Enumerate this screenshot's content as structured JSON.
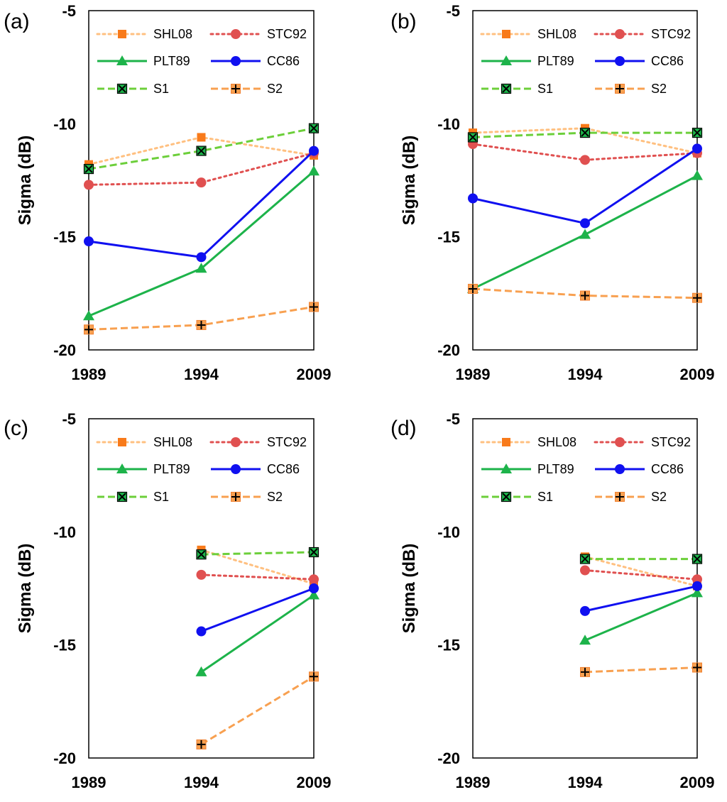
{
  "chart_data": [
    {
      "panel_label": "(a)",
      "type": "line",
      "x_categories": [
        "1989",
        "1994",
        "2009"
      ],
      "ylabel": "Sigma (dB)",
      "ylim": [
        -20,
        -5
      ],
      "yticks": [
        "-5",
        "-10",
        "-15",
        "-20"
      ],
      "legend_placement": "top, inside plot, 3 rows x 2 columns",
      "series": [
        {
          "name": "SHL08",
          "values": [
            -11.8,
            -10.6,
            -11.4
          ],
          "color": "#FFC080",
          "marker_color": "#F87A1A",
          "line_style": "dotted",
          "marker": "square"
        },
        {
          "name": "STC92",
          "values": [
            -12.7,
            -12.6,
            -11.3
          ],
          "color": "#E05050",
          "marker_color": "#E05050",
          "line_style": "dotted",
          "marker": "circle"
        },
        {
          "name": "PLT89",
          "values": [
            -18.5,
            -16.4,
            -12.1
          ],
          "color": "#1DB34A",
          "marker_color": "#1DB34A",
          "line_style": "solid",
          "marker": "triangle"
        },
        {
          "name": "CC86",
          "values": [
            -15.2,
            -15.9,
            -11.2
          ],
          "color": "#1010F0",
          "marker_color": "#1010F0",
          "line_style": "solid",
          "marker": "circle"
        },
        {
          "name": "S1",
          "values": [
            -12.0,
            -11.2,
            -10.2
          ],
          "color": "#6CCF3A",
          "marker_color": "#1DB34A",
          "line_style": "dashed",
          "marker": "square-x"
        },
        {
          "name": "S2",
          "values": [
            -19.1,
            -18.9,
            -18.1
          ],
          "color": "#F8A050",
          "marker_color": "#F8A050",
          "line_style": "dashed",
          "marker": "square-plus"
        }
      ]
    },
    {
      "panel_label": "(b)",
      "type": "line",
      "x_categories": [
        "1989",
        "1994",
        "2009"
      ],
      "ylabel": "Sigma (dB)",
      "ylim": [
        -20,
        -5
      ],
      "yticks": [
        "-5",
        "-10",
        "-15",
        "-20"
      ],
      "legend_placement": "top, inside plot, 3 rows x 2 columns",
      "series": [
        {
          "name": "SHL08",
          "values": [
            -10.4,
            -10.2,
            -11.3
          ],
          "color": "#FFC080",
          "marker_color": "#F87A1A",
          "line_style": "dotted",
          "marker": "square"
        },
        {
          "name": "STC92",
          "values": [
            -10.9,
            -11.6,
            -11.3
          ],
          "color": "#E05050",
          "marker_color": "#E05050",
          "line_style": "dotted",
          "marker": "circle"
        },
        {
          "name": "PLT89",
          "values": [
            -17.3,
            -14.9,
            -12.3
          ],
          "color": "#1DB34A",
          "marker_color": "#1DB34A",
          "line_style": "solid",
          "marker": "triangle"
        },
        {
          "name": "CC86",
          "values": [
            -13.3,
            -14.4,
            -11.1
          ],
          "color": "#1010F0",
          "marker_color": "#1010F0",
          "line_style": "solid",
          "marker": "circle"
        },
        {
          "name": "S1",
          "values": [
            -10.6,
            -10.4,
            -10.4
          ],
          "color": "#6CCF3A",
          "marker_color": "#1DB34A",
          "line_style": "dashed",
          "marker": "square-x"
        },
        {
          "name": "S2",
          "values": [
            -17.3,
            -17.6,
            -17.7
          ],
          "color": "#F8A050",
          "marker_color": "#F8A050",
          "line_style": "dashed",
          "marker": "square-plus"
        }
      ]
    },
    {
      "panel_label": "(c)",
      "type": "line",
      "x_categories": [
        "1989",
        "1994",
        "2009"
      ],
      "ylabel": "Sigma (dB)",
      "ylim": [
        -20,
        -5
      ],
      "yticks": [
        "-5",
        "-10",
        "-15",
        "-20"
      ],
      "legend_placement": "top, inside plot, 3 rows x 2 columns",
      "series": [
        {
          "name": "SHL08",
          "values": [
            null,
            -10.8,
            -12.3
          ],
          "color": "#FFC080",
          "marker_color": "#F87A1A",
          "line_style": "dotted",
          "marker": "square"
        },
        {
          "name": "STC92",
          "values": [
            null,
            -11.9,
            -12.1
          ],
          "color": "#E05050",
          "marker_color": "#E05050",
          "line_style": "dotted",
          "marker": "circle"
        },
        {
          "name": "PLT89",
          "values": [
            null,
            -16.2,
            -12.8
          ],
          "color": "#1DB34A",
          "marker_color": "#1DB34A",
          "line_style": "solid",
          "marker": "triangle"
        },
        {
          "name": "CC86",
          "values": [
            null,
            -14.4,
            -12.5
          ],
          "color": "#1010F0",
          "marker_color": "#1010F0",
          "line_style": "solid",
          "marker": "circle"
        },
        {
          "name": "S1",
          "values": [
            null,
            -11.0,
            -10.9
          ],
          "color": "#6CCF3A",
          "marker_color": "#1DB34A",
          "line_style": "dashed",
          "marker": "square-x"
        },
        {
          "name": "S2",
          "values": [
            null,
            -19.4,
            -16.4
          ],
          "color": "#F8A050",
          "marker_color": "#F8A050",
          "line_style": "dashed",
          "marker": "square-plus"
        }
      ]
    },
    {
      "panel_label": "(d)",
      "type": "line",
      "x_categories": [
        "1989",
        "1994",
        "2009"
      ],
      "ylabel": "Sigma (dB)",
      "ylim": [
        -20,
        -5
      ],
      "yticks": [
        "-5",
        "-10",
        "-15",
        "-20"
      ],
      "legend_placement": "top, inside plot, 3 rows x 2 columns",
      "series": [
        {
          "name": "SHL08",
          "values": [
            null,
            -11.1,
            -12.4
          ],
          "color": "#FFC080",
          "marker_color": "#F87A1A",
          "line_style": "dotted",
          "marker": "square"
        },
        {
          "name": "STC92",
          "values": [
            null,
            -11.7,
            -12.1
          ],
          "color": "#E05050",
          "marker_color": "#E05050",
          "line_style": "dotted",
          "marker": "circle"
        },
        {
          "name": "PLT89",
          "values": [
            null,
            -14.8,
            -12.7
          ],
          "color": "#1DB34A",
          "marker_color": "#1DB34A",
          "line_style": "solid",
          "marker": "triangle"
        },
        {
          "name": "CC86",
          "values": [
            null,
            -13.5,
            -12.4
          ],
          "color": "#1010F0",
          "marker_color": "#1010F0",
          "line_style": "solid",
          "marker": "circle"
        },
        {
          "name": "S1",
          "values": [
            null,
            -11.2,
            -11.2
          ],
          "color": "#6CCF3A",
          "marker_color": "#1DB34A",
          "line_style": "dashed",
          "marker": "square-x"
        },
        {
          "name": "S2",
          "values": [
            null,
            -16.2,
            -16.0
          ],
          "color": "#F8A050",
          "marker_color": "#F8A050",
          "line_style": "dashed",
          "marker": "square-plus"
        }
      ]
    }
  ]
}
